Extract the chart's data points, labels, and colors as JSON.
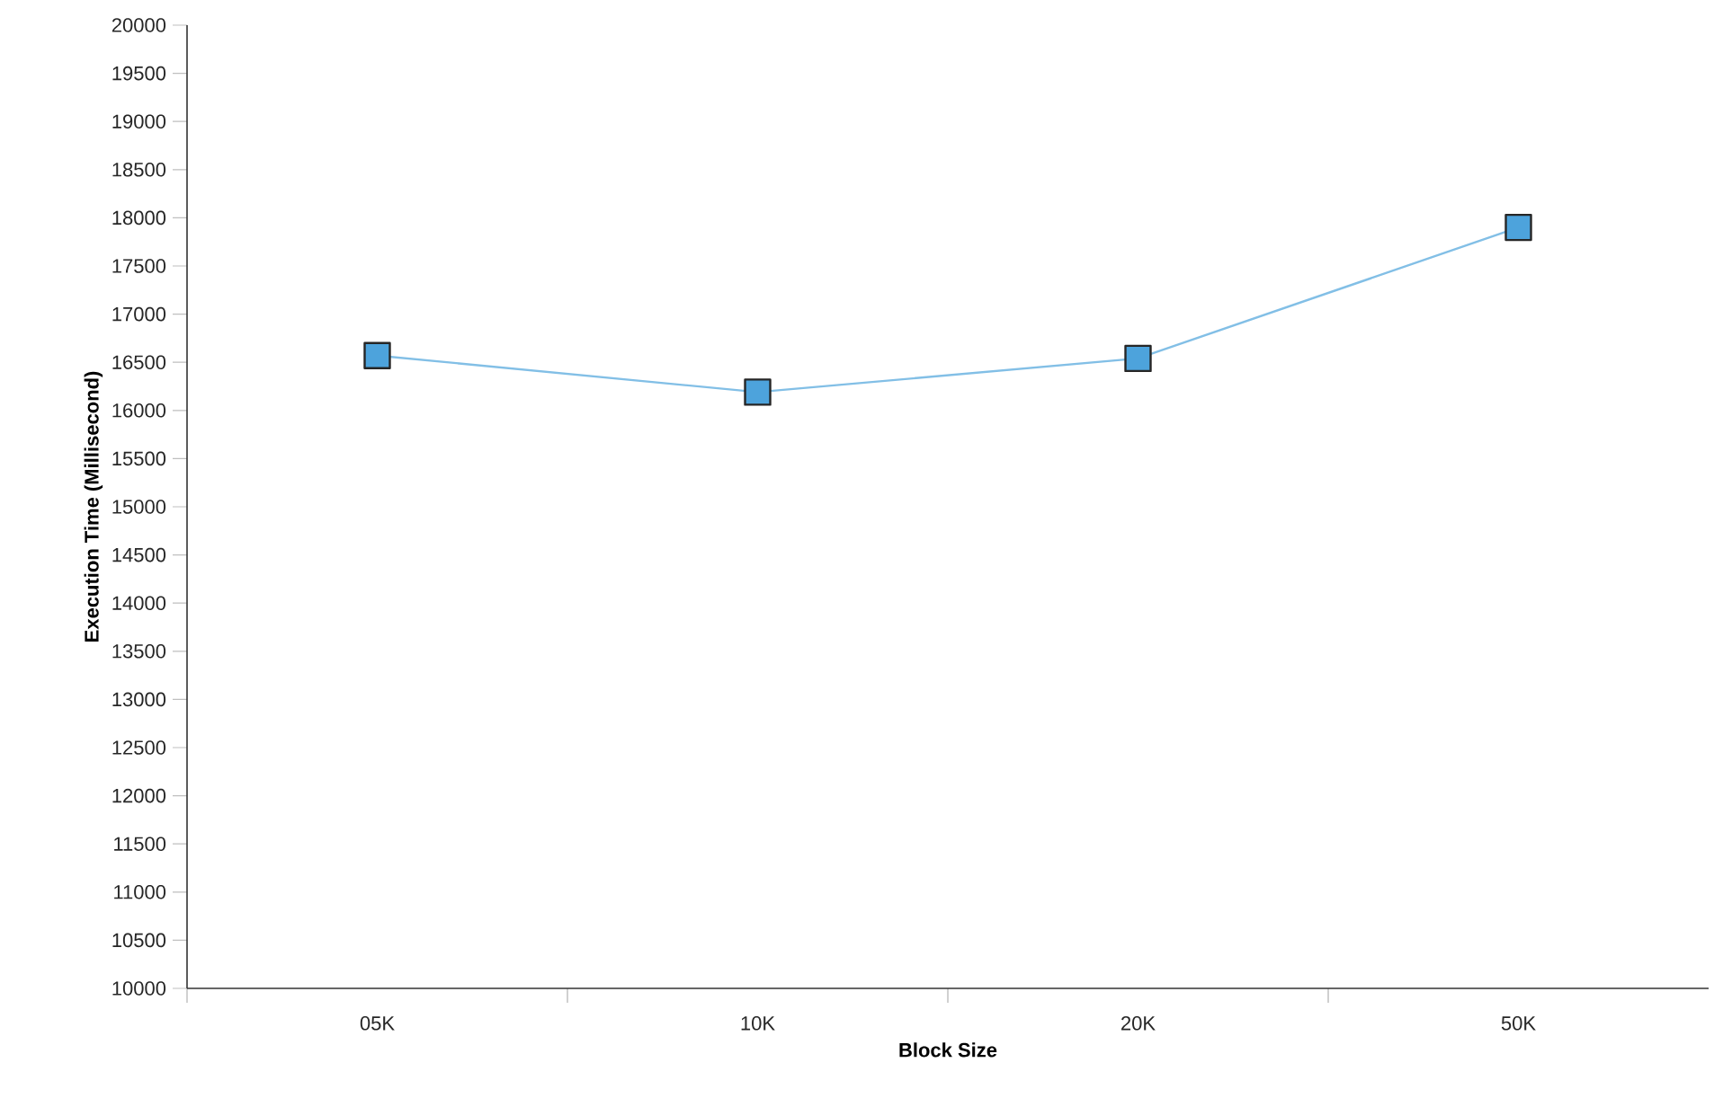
{
  "chart_data": {
    "type": "line",
    "xlabel": "Block Size",
    "ylabel": "Execution Time (Millisecond)",
    "categories": [
      "05K",
      "10K",
      "20K",
      "50K"
    ],
    "series": [
      {
        "color": "#4da3dc",
        "values": [
          16570,
          16190,
          16540,
          17900
        ]
      }
    ],
    "ylim": [
      10000,
      20000
    ],
    "yticks": [
      10000,
      10500,
      11000,
      11500,
      12000,
      12500,
      13000,
      13500,
      14000,
      14500,
      15000,
      15500,
      16000,
      16500,
      17000,
      17500,
      18000,
      18500,
      19000,
      19500,
      20000
    ],
    "grid": false,
    "marker": "square",
    "line_style": "solid"
  }
}
